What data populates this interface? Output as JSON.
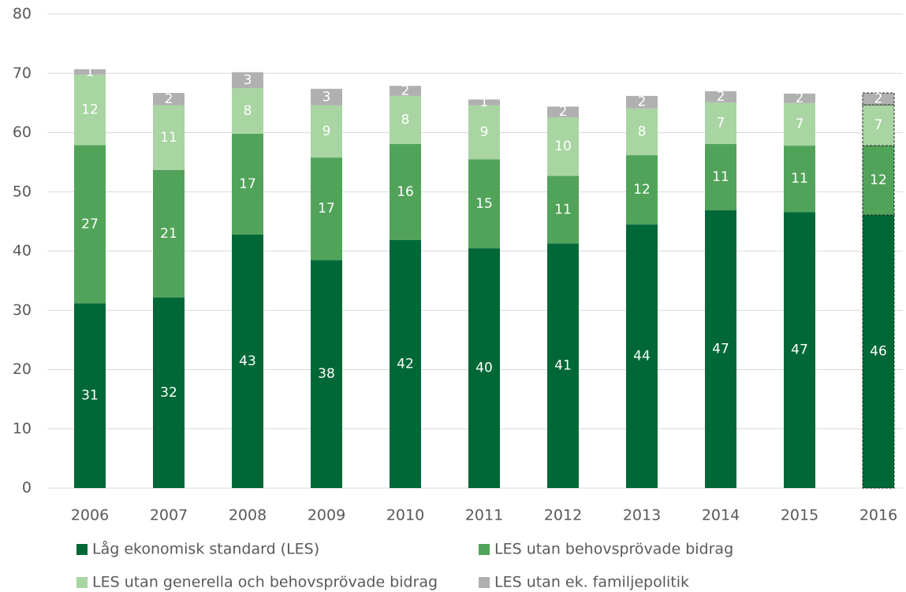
{
  "chart_data": {
    "type": "stacked_bar",
    "categories": [
      "2006",
      "2007",
      "2008",
      "2009",
      "2010",
      "2011",
      "2012",
      "2013",
      "2014",
      "2015",
      "2016"
    ],
    "series": [
      {
        "name": "Låg ekonomisk standard (LES)",
        "color": "#006837",
        "values": [
          31.2,
          32.2,
          42.8,
          38.5,
          41.9,
          40.5,
          41.3,
          44.5,
          46.9,
          46.6,
          46.1
        ],
        "value_labels": [
          "31",
          "32",
          "43",
          "38",
          "42",
          "40",
          "41",
          "44",
          "47",
          "47",
          "46"
        ]
      },
      {
        "name": "LES utan behovsprövade bidrag",
        "color": "#52a35a",
        "values": [
          26.7,
          21.5,
          17.0,
          17.3,
          16.2,
          15.0,
          11.4,
          11.7,
          11.2,
          11.2,
          11.7
        ],
        "value_labels": [
          "27",
          "21",
          "17",
          "17",
          "16",
          "15",
          "11",
          "12",
          "11",
          "11",
          "12"
        ]
      },
      {
        "name": "LES utan generella och behovsprövade bidrag",
        "color": "#a8d5a2",
        "values": [
          11.9,
          10.9,
          7.7,
          8.8,
          8.1,
          9.1,
          9.9,
          7.9,
          7.0,
          7.2,
          6.9
        ],
        "value_labels": [
          "12",
          "11",
          "8",
          "9",
          "8",
          "9",
          "10",
          "8",
          "7",
          "7",
          "7"
        ]
      },
      {
        "name": "LES utan ek. familjepolitik",
        "color": "#b0b0b0",
        "values": [
          0.9,
          2.1,
          2.7,
          2.8,
          1.7,
          1.0,
          1.8,
          2.1,
          1.9,
          1.6,
          2.0
        ],
        "value_labels": [
          "1",
          "2",
          "3",
          "3",
          "2",
          "1",
          "2",
          "2",
          "2",
          "2",
          "2"
        ]
      }
    ],
    "ylim": [
      0,
      80
    ],
    "yticks": [
      0,
      10,
      20,
      30,
      40,
      50,
      60,
      70,
      80
    ],
    "grid": true
  }
}
